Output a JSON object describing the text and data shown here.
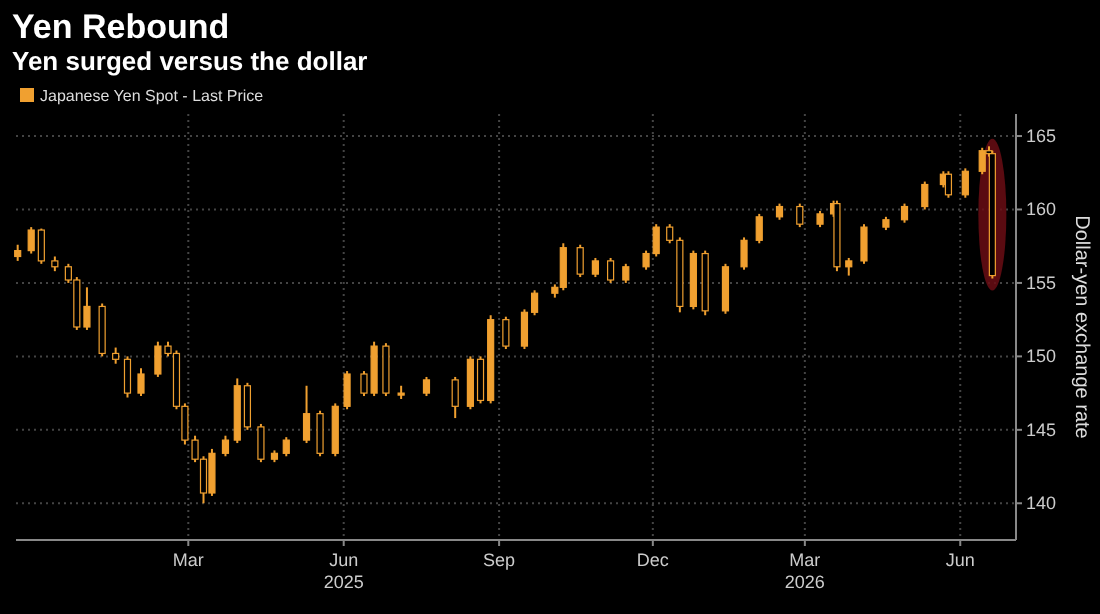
{
  "chart_data": {
    "type": "candlestick",
    "title": "Yen Rebound",
    "subtitle": "Yen surged versus the dollar",
    "ylabel": "Dollar-yen exchange rate",
    "legend": "top left",
    "grid": true,
    "xlim": [
      "2024-12-03",
      "2026-07-18"
    ],
    "xticks": [
      {
        "value": "2025-03-15",
        "label": "Mar"
      },
      {
        "value": "2025-06-15",
        "label": "Jun\n2025"
      },
      {
        "value": "2025-09-15",
        "label": "Sep"
      },
      {
        "value": "2025-12-15",
        "label": "Dec"
      },
      {
        "value": "2026-03-15",
        "label": "Mar\n2026"
      },
      {
        "value": "2026-06-15",
        "label": "Jun"
      }
    ],
    "ylim": [
      137.5,
      166.5
    ],
    "yticks": [
      140,
      145,
      150,
      155,
      160,
      165
    ],
    "x": [
      "2024-12-04",
      "2024-12-12",
      "2024-12-18",
      "2024-12-26",
      "2025-01-03",
      "2025-01-08",
      "2025-01-14",
      "2025-01-23",
      "2025-01-31",
      "2025-02-07",
      "2025-02-15",
      "2025-02-25",
      "2025-03-03",
      "2025-03-08",
      "2025-03-13",
      "2025-03-19",
      "2025-03-24",
      "2025-03-29",
      "2025-04-06",
      "2025-04-13",
      "2025-04-19",
      "2025-04-27",
      "2025-05-05",
      "2025-05-12",
      "2025-05-24",
      "2025-06-01",
      "2025-06-10",
      "2025-06-17",
      "2025-06-27",
      "2025-07-03",
      "2025-07-10",
      "2025-07-19",
      "2025-08-03",
      "2025-08-20",
      "2025-08-29",
      "2025-09-04",
      "2025-09-10",
      "2025-09-19",
      "2025-09-30",
      "2025-10-06",
      "2025-10-18",
      "2025-10-23",
      "2025-11-02",
      "2025-11-11",
      "2025-11-20",
      "2025-11-29",
      "2025-12-11",
      "2025-12-17",
      "2025-12-25",
      "2025-12-31",
      "2026-01-08",
      "2026-01-15",
      "2026-01-27",
      "2026-02-07",
      "2026-02-16",
      "2026-02-28",
      "2026-03-12",
      "2026-03-24",
      "2026-04-01",
      "2026-04-03",
      "2026-04-10",
      "2026-04-19",
      "2026-05-02",
      "2026-05-13",
      "2026-05-25",
      "2026-06-05",
      "2026-06-08",
      "2026-06-18",
      "2026-06-28",
      "2026-07-02",
      "2026-07-04"
    ],
    "series": [
      {
        "name": "Japanese Yen Spot - Last Price",
        "color": "#f0a030",
        "ohlc": [
          [
            156.8,
            157.6,
            156.5,
            157.2
          ],
          [
            157.2,
            158.8,
            157.0,
            158.6
          ],
          [
            158.6,
            158.7,
            156.3,
            156.5
          ],
          [
            156.5,
            156.8,
            155.8,
            156.1
          ],
          [
            156.1,
            156.3,
            155.0,
            155.2
          ],
          [
            155.2,
            155.4,
            151.8,
            152.0
          ],
          [
            152.0,
            154.7,
            151.8,
            153.4
          ],
          [
            153.4,
            153.6,
            150.0,
            150.2
          ],
          [
            150.2,
            150.6,
            149.5,
            149.8
          ],
          [
            149.8,
            150.0,
            147.2,
            147.5
          ],
          [
            147.5,
            149.2,
            147.3,
            148.8
          ],
          [
            148.8,
            151.0,
            148.6,
            150.7
          ],
          [
            150.7,
            151.0,
            150.0,
            150.2
          ],
          [
            150.2,
            150.4,
            146.4,
            146.6
          ],
          [
            146.6,
            146.8,
            144.0,
            144.3
          ],
          [
            144.3,
            144.6,
            142.8,
            143.0
          ],
          [
            143.0,
            143.2,
            140.0,
            140.7
          ],
          [
            140.7,
            143.7,
            140.5,
            143.4
          ],
          [
            143.4,
            144.6,
            143.2,
            144.3
          ],
          [
            144.3,
            148.5,
            144.1,
            148.0
          ],
          [
            148.0,
            148.2,
            145.0,
            145.2
          ],
          [
            145.2,
            145.4,
            142.8,
            143.0
          ],
          [
            143.0,
            143.6,
            142.8,
            143.4
          ],
          [
            143.4,
            144.5,
            143.2,
            144.3
          ],
          [
            144.3,
            148.0,
            144.1,
            146.1
          ],
          [
            146.1,
            146.3,
            143.2,
            143.4
          ],
          [
            143.4,
            146.8,
            143.2,
            146.6
          ],
          [
            146.6,
            149.0,
            146.4,
            148.8
          ],
          [
            148.8,
            149.0,
            147.3,
            147.5
          ],
          [
            147.5,
            151.0,
            147.3,
            150.7
          ],
          [
            150.7,
            150.9,
            147.3,
            147.5
          ],
          [
            147.5,
            148.0,
            147.1,
            147.5
          ],
          [
            147.5,
            148.6,
            147.3,
            148.4
          ],
          [
            148.4,
            148.6,
            145.8,
            146.6
          ],
          [
            146.6,
            150.0,
            146.4,
            149.8
          ],
          [
            149.8,
            150.0,
            146.8,
            147.0
          ],
          [
            147.0,
            152.8,
            146.8,
            152.5
          ],
          [
            152.5,
            152.7,
            150.5,
            150.7
          ],
          [
            150.7,
            153.2,
            150.5,
            153.0
          ],
          [
            153.0,
            154.5,
            152.8,
            154.3
          ],
          [
            154.3,
            154.9,
            154.0,
            154.7
          ],
          [
            154.7,
            157.7,
            154.5,
            157.4
          ],
          [
            157.4,
            157.6,
            155.4,
            155.6
          ],
          [
            155.6,
            156.7,
            155.4,
            156.5
          ],
          [
            156.5,
            156.7,
            155.0,
            155.2
          ],
          [
            155.2,
            156.3,
            155.0,
            156.1
          ],
          [
            156.1,
            157.2,
            155.9,
            157.0
          ],
          [
            157.0,
            159.0,
            156.8,
            158.8
          ],
          [
            158.8,
            159.0,
            157.7,
            157.9
          ],
          [
            157.9,
            158.1,
            153.0,
            153.4
          ],
          [
            153.4,
            157.2,
            153.2,
            157.0
          ],
          [
            157.0,
            157.2,
            152.8,
            153.1
          ],
          [
            153.1,
            156.3,
            152.9,
            156.1
          ],
          [
            156.1,
            158.1,
            155.9,
            157.9
          ],
          [
            157.9,
            159.7,
            157.7,
            159.5
          ],
          [
            159.5,
            160.4,
            159.3,
            160.2
          ],
          [
            160.2,
            160.4,
            158.8,
            159.0
          ],
          [
            159.0,
            159.9,
            158.8,
            159.7
          ],
          [
            159.7,
            160.6,
            159.5,
            160.4
          ],
          [
            160.4,
            160.6,
            155.8,
            156.1
          ],
          [
            156.1,
            156.7,
            155.5,
            156.5
          ],
          [
            156.5,
            159.0,
            156.3,
            158.8
          ],
          [
            158.8,
            159.5,
            158.6,
            159.3
          ],
          [
            159.3,
            160.4,
            159.1,
            160.2
          ],
          [
            160.2,
            161.9,
            160.0,
            161.7
          ],
          [
            161.7,
            162.6,
            161.5,
            162.4
          ],
          [
            162.4,
            162.6,
            160.8,
            161.0
          ],
          [
            161.0,
            162.8,
            160.8,
            162.6
          ],
          [
            162.6,
            164.2,
            162.4,
            164.0
          ],
          [
            164.0,
            164.3,
            163.6,
            163.8
          ],
          [
            163.8,
            164.0,
            155.3,
            155.5
          ]
        ]
      }
    ]
  }
}
